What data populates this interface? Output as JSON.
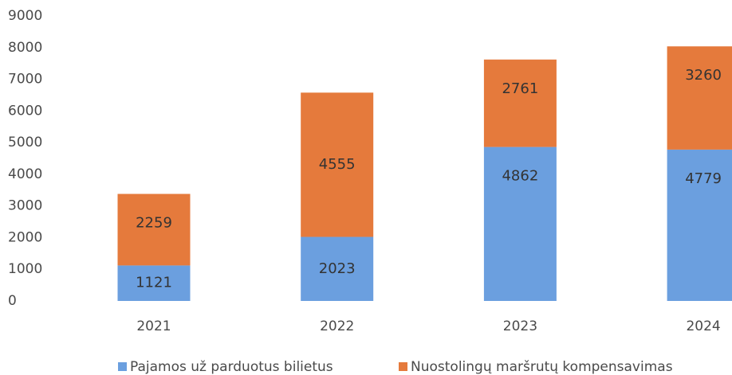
{
  "chart_data": {
    "type": "stacked_bar",
    "categories": [
      "2021",
      "2022",
      "2023",
      "2024"
    ],
    "series": [
      {
        "name": "Pajamos už parduotus bilietus",
        "color": "#6b9fdf",
        "values": [
          1121,
          2023,
          4862,
          4779
        ]
      },
      {
        "name": "Nuostolingų maršrutų kompensavimas",
        "color": "#e57a3c",
        "values": [
          2259,
          4555,
          2761,
          3260
        ]
      }
    ],
    "ylim": [
      0,
      9000
    ],
    "yticks": [
      0,
      1000,
      2000,
      3000,
      4000,
      5000,
      6000,
      7000,
      8000,
      9000
    ],
    "grid": false,
    "legend": "bottom"
  }
}
